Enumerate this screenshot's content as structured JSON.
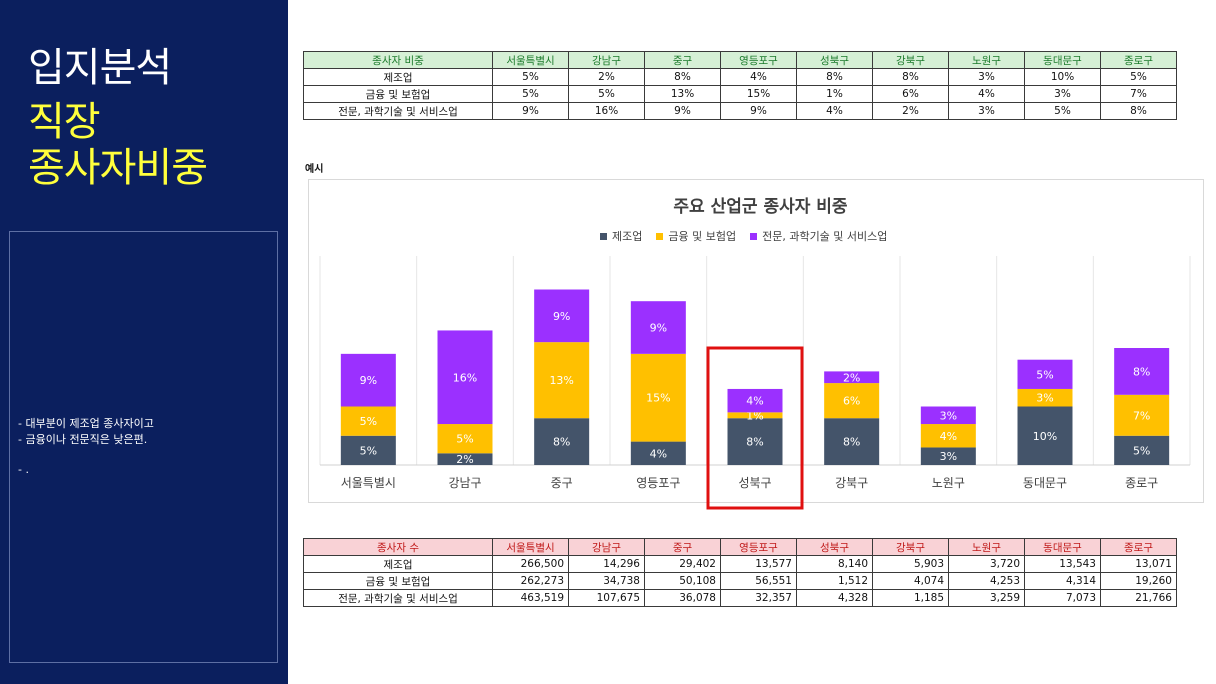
{
  "sidebar": {
    "title_line1": "입지분석",
    "title_line2": "직장",
    "title_line3": "종사자비중",
    "notes": [
      "-   대부분이 제조업 종사자이고",
      "-   금융이나 전문직은 낮은편.",
      "-   ."
    ]
  },
  "share_table": {
    "header": [
      "종사자 비중",
      "서울특별시",
      "강남구",
      "중구",
      "영등포구",
      "성북구",
      "강북구",
      "노원구",
      "동대문구",
      "종로구"
    ],
    "rows": [
      [
        "제조업",
        "5%",
        "2%",
        "8%",
        "4%",
        "8%",
        "8%",
        "3%",
        "10%",
        "5%"
      ],
      [
        "금융 및 보험업",
        "5%",
        "5%",
        "13%",
        "15%",
        "1%",
        "6%",
        "4%",
        "3%",
        "7%"
      ],
      [
        "전문, 과학기술 및 서비스업",
        "9%",
        "16%",
        "9%",
        "9%",
        "4%",
        "2%",
        "3%",
        "5%",
        "8%"
      ]
    ]
  },
  "example_label": "예시",
  "count_table": {
    "header": [
      "종사자 수",
      "서울특별시",
      "강남구",
      "중구",
      "영등포구",
      "성북구",
      "강북구",
      "노원구",
      "동대문구",
      "종로구"
    ],
    "rows": [
      [
        "제조업",
        "266,500",
        "14,296",
        "29,402",
        "13,577",
        "8,140",
        "5,903",
        "3,720",
        "13,543",
        "13,071"
      ],
      [
        "금융 및 보험업",
        "262,273",
        "34,738",
        "50,108",
        "56,551",
        "1,512",
        "4,074",
        "4,253",
        "4,314",
        "19,260"
      ],
      [
        "전문, 과학기술 및 서비스업",
        "463,519",
        "107,675",
        "36,078",
        "32,357",
        "4,328",
        "1,185",
        "3,259",
        "7,073",
        "21,766"
      ]
    ]
  },
  "colors": {
    "manufacturing": "#44546a",
    "finance": "#ffc000",
    "professional": "#9b30ff",
    "highlight": "#e01010"
  },
  "chart_data": {
    "type": "bar",
    "stacked": true,
    "title": "주요 산업군 종사자 비중",
    "categories": [
      "서울특별시",
      "강남구",
      "중구",
      "영등포구",
      "성북구",
      "강북구",
      "노원구",
      "동대문구",
      "종로구"
    ],
    "series": [
      {
        "name": "제조업",
        "values": [
          5,
          2,
          8,
          4,
          8,
          8,
          3,
          10,
          5
        ]
      },
      {
        "name": "금융 및 보험업",
        "values": [
          5,
          5,
          13,
          15,
          1,
          6,
          4,
          3,
          7
        ]
      },
      {
        "name": "전문, 과학기술 및 서비스업",
        "values": [
          9,
          16,
          9,
          9,
          4,
          2,
          3,
          5,
          8
        ]
      }
    ],
    "data_labels": true,
    "unit": "%",
    "legend_position": "top",
    "grid": "vertical",
    "highlighted_category": "성북구"
  }
}
